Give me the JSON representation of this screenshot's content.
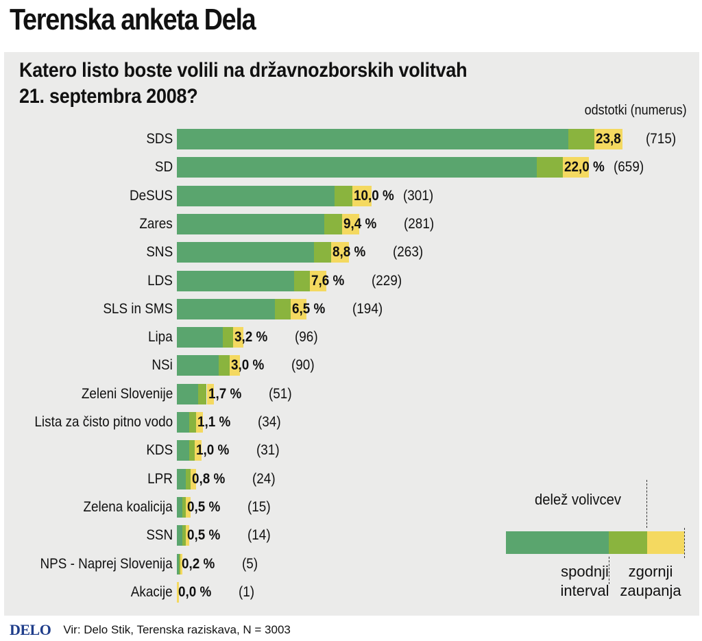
{
  "header": {
    "title": "Terenska anketa Dela",
    "question_line1": "Katero listo boste volili na državnozborskih volitvah",
    "question_line2": "21. septembra 2008?",
    "units": "odstotki (numerus)"
  },
  "chart_data": {
    "type": "bar",
    "orientation": "horizontal",
    "title": "Katero listo boste volili na državnozborskih volitvah 21. septembra 2008?",
    "value_unit": "odstotki (numerus)",
    "categories": [
      "SDS",
      "SD",
      "DeSUS",
      "Zares",
      "SNS",
      "LDS",
      "SLS in SMS",
      "Lipa",
      "NSi",
      "Zeleni Slovenije",
      "Lista za čisto pitno vodo",
      "KDS",
      "LPR",
      "Zelena koalicija",
      "SSN",
      "NPS - Naprej Slovenija",
      "Akacije"
    ],
    "values": [
      23.8,
      22.0,
      10.0,
      9.4,
      8.8,
      7.6,
      6.5,
      3.2,
      3.0,
      1.7,
      1.1,
      1.0,
      0.8,
      0.5,
      0.5,
      0.2,
      0.0
    ],
    "value_labels": [
      "23,8",
      "22,0 %",
      "10,0 %",
      "9,4 %",
      "8,8 %",
      "7,6 %",
      "6,5 %",
      "3,2 %",
      "3,0 %",
      "1,7 %",
      "1,1 %",
      "1,0 %",
      "0,8 %",
      "0,5 %",
      "0,5 %",
      "0,2 %",
      "0,0 %"
    ],
    "numerus_labels": [
      "(715)",
      "(659)",
      "(301)",
      "(281)",
      "(263)",
      "(229)",
      "(194)",
      "(96)",
      "(90)",
      "(51)",
      "(34)",
      "(31)",
      "(24)",
      "(15)",
      "(14)",
      "(5)",
      "(1)"
    ],
    "lower_ci": [
      22.3,
      20.5,
      9.0,
      8.4,
      7.8,
      6.7,
      5.6,
      2.6,
      2.4,
      1.2,
      0.7,
      0.7,
      0.5,
      0.3,
      0.3,
      0.1,
      0.0
    ],
    "upper_ci": [
      25.4,
      23.5,
      11.1,
      10.4,
      9.8,
      8.5,
      7.4,
      3.8,
      3.6,
      2.1,
      1.5,
      1.4,
      1.1,
      0.8,
      0.7,
      0.3,
      0.1
    ],
    "xlim": [
      0,
      25.4
    ],
    "colors": {
      "lower": "#5aa56e",
      "share": "#8ab43e",
      "upper": "#f4d960"
    }
  },
  "legend": {
    "title": "delež volivcev",
    "lower_label": [
      "spodnji",
      "interval"
    ],
    "upper_label": [
      "zgornji",
      "zaupanja"
    ]
  },
  "footer": {
    "logo": "DELO",
    "source": "Vir: Delo Stik, Terenska raziskava, N = 3003"
  }
}
